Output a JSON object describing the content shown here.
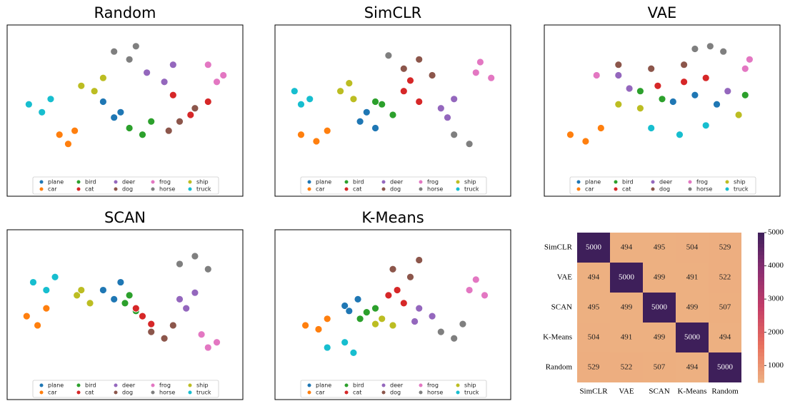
{
  "chart_data": [
    {
      "type": "scatter",
      "title": "Random",
      "xlim": [
        0,
        100
      ],
      "ylim": [
        0,
        100
      ],
      "series": [
        {
          "name": "plane",
          "color": "#1f77b4",
          "x": [
            40,
            48,
            45
          ],
          "y": [
            50,
            42,
            38
          ]
        },
        {
          "name": "car",
          "color": "#ff7f0e",
          "x": [
            20,
            27,
            24
          ],
          "y": [
            25,
            28,
            18
          ]
        },
        {
          "name": "bird",
          "color": "#2ca02c",
          "x": [
            52,
            58,
            62
          ],
          "y": [
            30,
            25,
            35
          ]
        },
        {
          "name": "cat",
          "color": "#d62728",
          "x": [
            72,
            88,
            80
          ],
          "y": [
            55,
            50,
            40
          ]
        },
        {
          "name": "deer",
          "color": "#9467bd",
          "x": [
            60,
            68,
            72
          ],
          "y": [
            72,
            65,
            78
          ]
        },
        {
          "name": "dog",
          "color": "#8c564b",
          "x": [
            75,
            82,
            70
          ],
          "y": [
            35,
            45,
            28
          ]
        },
        {
          "name": "frog",
          "color": "#e377c2",
          "x": [
            88,
            95,
            92
          ],
          "y": [
            78,
            70,
            65
          ]
        },
        {
          "name": "horse",
          "color": "#7f7f7f",
          "x": [
            45,
            52,
            55
          ],
          "y": [
            88,
            82,
            92
          ]
        },
        {
          "name": "ship",
          "color": "#bcbd22",
          "x": [
            30,
            36,
            40
          ],
          "y": [
            62,
            58,
            68
          ]
        },
        {
          "name": "truck",
          "color": "#17becf",
          "x": [
            6,
            12,
            16
          ],
          "y": [
            48,
            42,
            52
          ]
        }
      ]
    },
    {
      "type": "scatter",
      "title": "SimCLR",
      "xlim": [
        0,
        100
      ],
      "ylim": [
        0,
        100
      ],
      "series": [
        {
          "name": "plane",
          "color": "#1f77b4",
          "x": [
            35,
            42,
            38
          ],
          "y": [
            35,
            30,
            42
          ]
        },
        {
          "name": "car",
          "color": "#ff7f0e",
          "x": [
            8,
            15,
            20
          ],
          "y": [
            25,
            20,
            28
          ]
        },
        {
          "name": "bird",
          "color": "#2ca02c",
          "x": [
            45,
            50,
            42
          ],
          "y": [
            48,
            40,
            50
          ]
        },
        {
          "name": "cat",
          "color": "#d62728",
          "x": [
            55,
            62,
            58
          ],
          "y": [
            58,
            50,
            66
          ]
        },
        {
          "name": "deer",
          "color": "#9467bd",
          "x": [
            72,
            78,
            75
          ],
          "y": [
            45,
            52,
            38
          ]
        },
        {
          "name": "dog",
          "color": "#8c564b",
          "x": [
            55,
            62,
            68
          ],
          "y": [
            75,
            82,
            70
          ]
        },
        {
          "name": "frog",
          "color": "#e377c2",
          "x": [
            88,
            95,
            90
          ],
          "y": [
            72,
            68,
            80
          ]
        },
        {
          "name": "horse",
          "color": "#7f7f7f",
          "x": [
            78,
            85,
            48
          ],
          "y": [
            25,
            18,
            85
          ]
        },
        {
          "name": "ship",
          "color": "#bcbd22",
          "x": [
            26,
            32,
            30
          ],
          "y": [
            58,
            52,
            64
          ]
        },
        {
          "name": "truck",
          "color": "#17becf",
          "x": [
            5,
            12,
            8
          ],
          "y": [
            58,
            52,
            48
          ]
        }
      ]
    },
    {
      "type": "scatter",
      "title": "VAE",
      "xlim": [
        0,
        100
      ],
      "ylim": [
        0,
        100
      ],
      "series": [
        {
          "name": "plane",
          "color": "#1f77b4",
          "x": [
            55,
            65,
            75
          ],
          "y": [
            50,
            55,
            48
          ]
        },
        {
          "name": "car",
          "color": "#ff7f0e",
          "x": [
            8,
            15,
            22
          ],
          "y": [
            25,
            20,
            30
          ]
        },
        {
          "name": "bird",
          "color": "#2ca02c",
          "x": [
            40,
            88,
            50
          ],
          "y": [
            58,
            55,
            52
          ]
        },
        {
          "name": "cat",
          "color": "#d62728",
          "x": [
            60,
            70,
            48
          ],
          "y": [
            65,
            68,
            62
          ]
        },
        {
          "name": "deer",
          "color": "#9467bd",
          "x": [
            35,
            30,
            80
          ],
          "y": [
            60,
            70,
            58
          ]
        },
        {
          "name": "dog",
          "color": "#8c564b",
          "x": [
            30,
            45,
            60
          ],
          "y": [
            78,
            75,
            78
          ]
        },
        {
          "name": "frog",
          "color": "#e377c2",
          "x": [
            20,
            90,
            88
          ],
          "y": [
            70,
            82,
            75
          ]
        },
        {
          "name": "horse",
          "color": "#7f7f7f",
          "x": [
            65,
            72,
            78
          ],
          "y": [
            90,
            92,
            88
          ]
        },
        {
          "name": "ship",
          "color": "#bcbd22",
          "x": [
            30,
            85,
            40
          ],
          "y": [
            48,
            40,
            45
          ]
        },
        {
          "name": "truck",
          "color": "#17becf",
          "x": [
            45,
            58,
            70
          ],
          "y": [
            30,
            25,
            32
          ]
        }
      ]
    },
    {
      "type": "scatter",
      "title": "SCAN",
      "xlim": [
        0,
        100
      ],
      "ylim": [
        0,
        100
      ],
      "series": [
        {
          "name": "plane",
          "color": "#1f77b4",
          "x": [
            40,
            45,
            48
          ],
          "y": [
            62,
            55,
            68
          ]
        },
        {
          "name": "car",
          "color": "#ff7f0e",
          "x": [
            5,
            10,
            14
          ],
          "y": [
            42,
            35,
            48
          ]
        },
        {
          "name": "bird",
          "color": "#2ca02c",
          "x": [
            50,
            55,
            52
          ],
          "y": [
            52,
            46,
            58
          ]
        },
        {
          "name": "cat",
          "color": "#d62728",
          "x": [
            58,
            62,
            55
          ],
          "y": [
            42,
            36,
            48
          ]
        },
        {
          "name": "deer",
          "color": "#9467bd",
          "x": [
            75,
            82,
            78
          ],
          "y": [
            55,
            60,
            48
          ]
        },
        {
          "name": "dog",
          "color": "#8c564b",
          "x": [
            62,
            68,
            72
          ],
          "y": [
            30,
            25,
            35
          ]
        },
        {
          "name": "frog",
          "color": "#e377c2",
          "x": [
            85,
            92,
            88
          ],
          "y": [
            28,
            22,
            18
          ]
        },
        {
          "name": "horse",
          "color": "#7f7f7f",
          "x": [
            75,
            82,
            88
          ],
          "y": [
            82,
            88,
            78
          ]
        },
        {
          "name": "ship",
          "color": "#bcbd22",
          "x": [
            28,
            34,
            30
          ],
          "y": [
            58,
            52,
            62
          ]
        },
        {
          "name": "truck",
          "color": "#17becf",
          "x": [
            8,
            14,
            18
          ],
          "y": [
            68,
            62,
            72
          ]
        }
      ]
    },
    {
      "type": "scatter",
      "title": "K-Means",
      "xlim": [
        0,
        100
      ],
      "ylim": [
        0,
        100
      ],
      "series": [
        {
          "name": "plane",
          "color": "#1f77b4",
          "x": [
            28,
            34,
            30
          ],
          "y": [
            50,
            55,
            46
          ]
        },
        {
          "name": "car",
          "color": "#ff7f0e",
          "x": [
            10,
            16,
            20
          ],
          "y": [
            35,
            32,
            40
          ]
        },
        {
          "name": "bird",
          "color": "#2ca02c",
          "x": [
            38,
            42,
            35
          ],
          "y": [
            45,
            48,
            40
          ]
        },
        {
          "name": "cat",
          "color": "#d62728",
          "x": [
            48,
            55,
            52
          ],
          "y": [
            58,
            52,
            62
          ]
        },
        {
          "name": "deer",
          "color": "#9467bd",
          "x": [
            62,
            68,
            60
          ],
          "y": [
            48,
            42,
            38
          ]
        },
        {
          "name": "dog",
          "color": "#8c564b",
          "x": [
            50,
            58,
            62
          ],
          "y": [
            78,
            72,
            85
          ]
        },
        {
          "name": "frog",
          "color": "#e377c2",
          "x": [
            85,
            92,
            88
          ],
          "y": [
            62,
            58,
            70
          ]
        },
        {
          "name": "horse",
          "color": "#7f7f7f",
          "x": [
            72,
            78,
            82
          ],
          "y": [
            30,
            25,
            36
          ]
        },
        {
          "name": "ship",
          "color": "#bcbd22",
          "x": [
            45,
            50,
            42
          ],
          "y": [
            40,
            35,
            36
          ]
        },
        {
          "name": "truck",
          "color": "#17becf",
          "x": [
            20,
            28,
            32
          ],
          "y": [
            18,
            22,
            14
          ]
        }
      ]
    },
    {
      "type": "heatmap",
      "x_categories": [
        "SimCLR",
        "VAE",
        "SCAN",
        "K-Means",
        "Random"
      ],
      "y_categories": [
        "SimCLR",
        "VAE",
        "SCAN",
        "K-Means",
        "Random"
      ],
      "values": [
        [
          5000,
          494,
          495,
          504,
          529
        ],
        [
          494,
          5000,
          499,
          491,
          522
        ],
        [
          495,
          499,
          5000,
          499,
          507
        ],
        [
          504,
          491,
          499,
          5000,
          494
        ],
        [
          529,
          522,
          507,
          494,
          5000
        ]
      ],
      "colorbar_lim": [
        491,
        5000
      ],
      "colorbar_ticks": [
        1000,
        2000,
        3000,
        4000,
        5000
      ],
      "colors": [
        "#edb081",
        "#e8705d",
        "#c43d67",
        "#892e72",
        "#3e1f5a"
      ]
    }
  ]
}
